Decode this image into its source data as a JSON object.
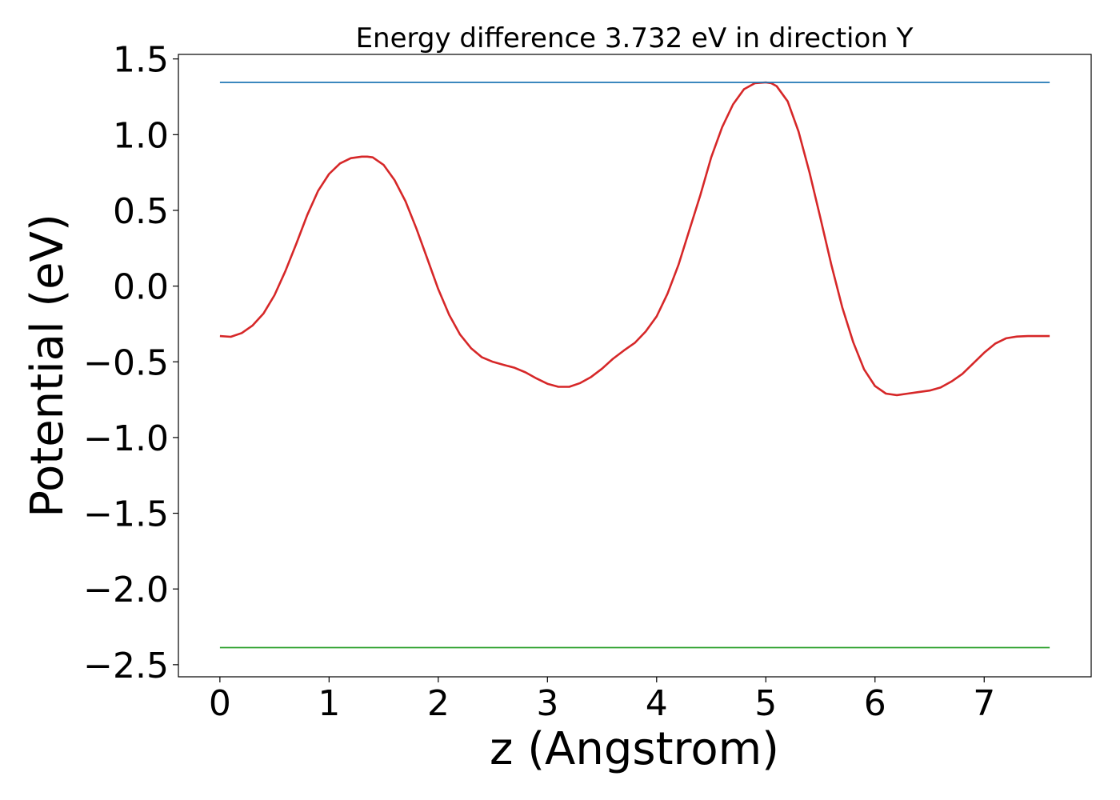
{
  "chart_data": {
    "type": "line",
    "title": "Energy difference 3.732 eV in direction Y",
    "xlabel": "z (Angstrom)",
    "ylabel": "Potential (eV)",
    "xlim": [
      -0.38,
      7.98
    ],
    "ylim": [
      -2.58,
      1.53
    ],
    "xticks": [
      0,
      1,
      2,
      3,
      4,
      5,
      6,
      7
    ],
    "yticks": [
      1.5,
      1.0,
      0.5,
      0.0,
      -0.5,
      -1.0,
      -1.5,
      -2.0,
      -2.5
    ],
    "ytick_labels": [
      "1.5",
      "1.0",
      "0.5",
      "0.0",
      "−0.5",
      "−1.0",
      "−1.5",
      "−2.0",
      "−2.5"
    ],
    "grid": false,
    "series": [
      {
        "color": "#d62728",
        "x": [
          0.0,
          0.1,
          0.2,
          0.3,
          0.4,
          0.5,
          0.6,
          0.7,
          0.8,
          0.9,
          1.0,
          1.1,
          1.2,
          1.3,
          1.35,
          1.4,
          1.5,
          1.6,
          1.7,
          1.8,
          1.9,
          2.0,
          2.1,
          2.2,
          2.3,
          2.4,
          2.5,
          2.6,
          2.7,
          2.8,
          2.9,
          3.0,
          3.1,
          3.2,
          3.3,
          3.4,
          3.5,
          3.6,
          3.7,
          3.8,
          3.9,
          4.0,
          4.1,
          4.2,
          4.3,
          4.4,
          4.5,
          4.6,
          4.7,
          4.8,
          4.9,
          5.0,
          5.05,
          5.1,
          5.2,
          5.3,
          5.4,
          5.5,
          5.6,
          5.7,
          5.8,
          5.9,
          6.0,
          6.1,
          6.2,
          6.3,
          6.4,
          6.5,
          6.6,
          6.7,
          6.8,
          6.9,
          7.0,
          7.1,
          7.2,
          7.3,
          7.4,
          7.5,
          7.6
        ],
        "y": [
          -0.33,
          -0.335,
          -0.31,
          -0.26,
          -0.18,
          -0.06,
          0.1,
          0.28,
          0.47,
          0.63,
          0.74,
          0.81,
          0.845,
          0.855,
          0.855,
          0.85,
          0.8,
          0.7,
          0.56,
          0.38,
          0.18,
          -0.02,
          -0.19,
          -0.32,
          -0.41,
          -0.47,
          -0.5,
          -0.52,
          -0.54,
          -0.57,
          -0.61,
          -0.645,
          -0.665,
          -0.665,
          -0.64,
          -0.6,
          -0.545,
          -0.48,
          -0.425,
          -0.375,
          -0.3,
          -0.2,
          -0.05,
          0.14,
          0.37,
          0.6,
          0.85,
          1.05,
          1.2,
          1.3,
          1.34,
          1.345,
          1.34,
          1.32,
          1.22,
          1.02,
          0.75,
          0.45,
          0.14,
          -0.14,
          -0.37,
          -0.55,
          -0.66,
          -0.71,
          -0.72,
          -0.71,
          -0.7,
          -0.69,
          -0.67,
          -0.63,
          -0.58,
          -0.51,
          -0.44,
          -0.38,
          -0.345,
          -0.333,
          -0.33,
          -0.33,
          -0.33
        ]
      },
      {
        "color": "#1f77b4",
        "x": [
          0.0,
          7.6
        ],
        "y": [
          1.345,
          1.345
        ]
      },
      {
        "color": "#2ca02c",
        "x": [
          0.0,
          7.6
        ],
        "y": [
          -2.387,
          -2.387
        ]
      }
    ]
  }
}
